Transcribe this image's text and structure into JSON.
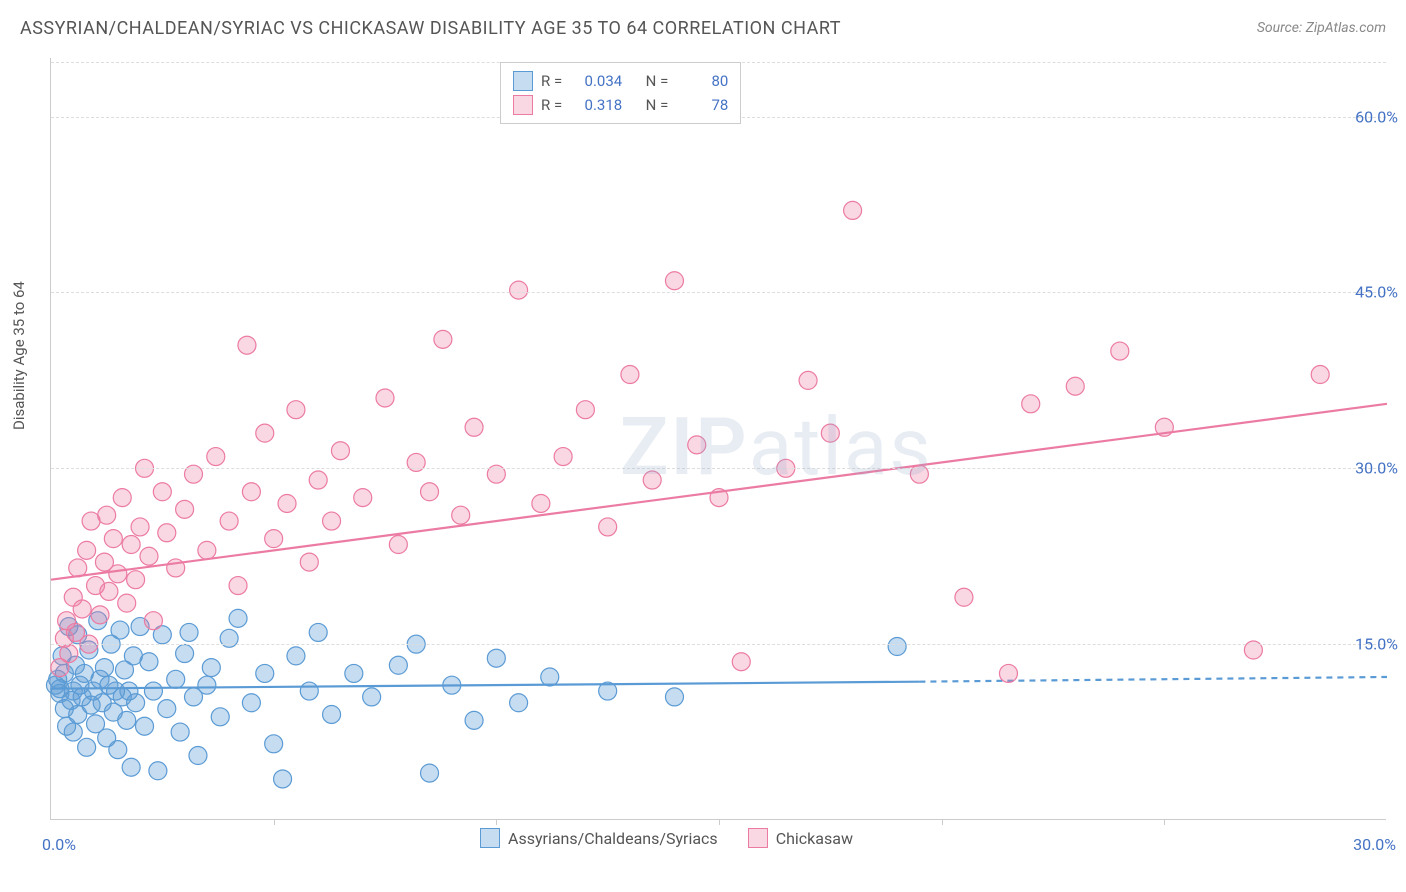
{
  "title": "ASSYRIAN/CHALDEAN/SYRIAC VS CHICKASAW DISABILITY AGE 35 TO 64 CORRELATION CHART",
  "source_label": "Source:",
  "source_value": "ZipAtlas.com",
  "watermark_zip": "ZIP",
  "watermark_atlas": "atlas",
  "ylabel": "Disability Age 35 to 64",
  "chart": {
    "type": "scatter",
    "background_color": "#ffffff",
    "grid_color": "#dddddd",
    "axis_color": "#cccccc",
    "xlim": [
      0,
      30
    ],
    "ylim": [
      0,
      65
    ],
    "x_ticks": [
      "0.0%",
      "30.0%"
    ],
    "x_minor_tick_step": 5,
    "y_ticks": [
      {
        "v": 15,
        "label": "15.0%"
      },
      {
        "v": 30,
        "label": "30.0%"
      },
      {
        "v": 45,
        "label": "45.0%"
      },
      {
        "v": 60,
        "label": "60.0%"
      }
    ],
    "tick_color": "#4472c4",
    "tick_fontsize": 16,
    "label_fontsize": 15,
    "title_fontsize": 18,
    "marker_radius": 9,
    "marker_opacity": 0.55,
    "line_width": 2.2,
    "series": [
      {
        "name": "Assyrians/Chaldeans/Syriacs",
        "color": "#5b9bd5",
        "fill": "rgba(91,155,213,0.35)",
        "stroke": "#5b9bd5",
        "R": "0.034",
        "N": "80",
        "trend": {
          "x1": 0,
          "y1": 11.2,
          "x2": 19.5,
          "y2": 11.8,
          "dash_x2": 30,
          "dash_y2": 12.2
        },
        "points": [
          [
            0.1,
            11.5
          ],
          [
            0.15,
            12
          ],
          [
            0.2,
            10.8
          ],
          [
            0.2,
            11.2
          ],
          [
            0.25,
            14
          ],
          [
            0.3,
            12.5
          ],
          [
            0.3,
            9.5
          ],
          [
            0.35,
            8
          ],
          [
            0.4,
            16.5
          ],
          [
            0.45,
            10.2
          ],
          [
            0.5,
            11
          ],
          [
            0.5,
            7.5
          ],
          [
            0.55,
            13.2
          ],
          [
            0.6,
            9
          ],
          [
            0.6,
            15.8
          ],
          [
            0.65,
            11.5
          ],
          [
            0.7,
            10.5
          ],
          [
            0.75,
            12.5
          ],
          [
            0.8,
            6.2
          ],
          [
            0.85,
            14.5
          ],
          [
            0.9,
            9.8
          ],
          [
            0.95,
            11
          ],
          [
            1.0,
            8.2
          ],
          [
            1.05,
            17
          ],
          [
            1.1,
            12
          ],
          [
            1.15,
            10
          ],
          [
            1.2,
            13
          ],
          [
            1.25,
            7
          ],
          [
            1.3,
            11.5
          ],
          [
            1.35,
            15
          ],
          [
            1.4,
            9.2
          ],
          [
            1.45,
            11
          ],
          [
            1.5,
            6
          ],
          [
            1.55,
            16.2
          ],
          [
            1.6,
            10.5
          ],
          [
            1.65,
            12.8
          ],
          [
            1.7,
            8.5
          ],
          [
            1.75,
            11
          ],
          [
            1.8,
            4.5
          ],
          [
            1.85,
            14
          ],
          [
            1.9,
            10
          ],
          [
            2.0,
            16.5
          ],
          [
            2.1,
            8
          ],
          [
            2.2,
            13.5
          ],
          [
            2.3,
            11
          ],
          [
            2.4,
            4.2
          ],
          [
            2.5,
            15.8
          ],
          [
            2.6,
            9.5
          ],
          [
            2.8,
            12
          ],
          [
            2.9,
            7.5
          ],
          [
            3.0,
            14.2
          ],
          [
            3.1,
            16
          ],
          [
            3.2,
            10.5
          ],
          [
            3.3,
            5.5
          ],
          [
            3.5,
            11.5
          ],
          [
            3.6,
            13
          ],
          [
            3.8,
            8.8
          ],
          [
            4.0,
            15.5
          ],
          [
            4.2,
            17.2
          ],
          [
            4.5,
            10
          ],
          [
            4.8,
            12.5
          ],
          [
            5.0,
            6.5
          ],
          [
            5.2,
            3.5
          ],
          [
            5.5,
            14
          ],
          [
            5.8,
            11
          ],
          [
            6.0,
            16
          ],
          [
            6.3,
            9
          ],
          [
            6.8,
            12.5
          ],
          [
            7.2,
            10.5
          ],
          [
            7.8,
            13.2
          ],
          [
            8.2,
            15
          ],
          [
            8.5,
            4
          ],
          [
            9.0,
            11.5
          ],
          [
            9.5,
            8.5
          ],
          [
            10.0,
            13.8
          ],
          [
            10.5,
            10
          ],
          [
            11.2,
            12.2
          ],
          [
            12.5,
            11
          ],
          [
            14.0,
            10.5
          ],
          [
            19.0,
            14.8
          ]
        ]
      },
      {
        "name": "Chickasaw",
        "color": "#ec7ba3",
        "fill": "rgba(236,123,163,0.30)",
        "stroke": "#ec7ba3",
        "R": "0.318",
        "N": "78",
        "trend": {
          "x1": 0,
          "y1": 20.5,
          "x2": 30,
          "y2": 35.5
        },
        "points": [
          [
            0.2,
            13
          ],
          [
            0.3,
            15.5
          ],
          [
            0.35,
            17
          ],
          [
            0.4,
            14.2
          ],
          [
            0.5,
            19
          ],
          [
            0.55,
            16
          ],
          [
            0.6,
            21.5
          ],
          [
            0.7,
            18
          ],
          [
            0.8,
            23
          ],
          [
            0.85,
            15
          ],
          [
            0.9,
            25.5
          ],
          [
            1.0,
            20
          ],
          [
            1.1,
            17.5
          ],
          [
            1.2,
            22
          ],
          [
            1.25,
            26
          ],
          [
            1.3,
            19.5
          ],
          [
            1.4,
            24
          ],
          [
            1.5,
            21
          ],
          [
            1.6,
            27.5
          ],
          [
            1.7,
            18.5
          ],
          [
            1.8,
            23.5
          ],
          [
            1.9,
            20.5
          ],
          [
            2.0,
            25
          ],
          [
            2.1,
            30
          ],
          [
            2.2,
            22.5
          ],
          [
            2.3,
            17
          ],
          [
            2.5,
            28
          ],
          [
            2.6,
            24.5
          ],
          [
            2.8,
            21.5
          ],
          [
            3.0,
            26.5
          ],
          [
            3.2,
            29.5
          ],
          [
            3.5,
            23
          ],
          [
            3.7,
            31
          ],
          [
            4.0,
            25.5
          ],
          [
            4.2,
            20
          ],
          [
            4.4,
            40.5
          ],
          [
            4.5,
            28
          ],
          [
            4.8,
            33
          ],
          [
            5.0,
            24
          ],
          [
            5.3,
            27
          ],
          [
            5.5,
            35
          ],
          [
            5.8,
            22
          ],
          [
            6.0,
            29
          ],
          [
            6.3,
            25.5
          ],
          [
            6.5,
            31.5
          ],
          [
            7.0,
            27.5
          ],
          [
            7.5,
            36
          ],
          [
            7.8,
            23.5
          ],
          [
            8.2,
            30.5
          ],
          [
            8.5,
            28
          ],
          [
            8.8,
            41
          ],
          [
            9.2,
            26
          ],
          [
            9.5,
            33.5
          ],
          [
            10.0,
            29.5
          ],
          [
            10.5,
            45.2
          ],
          [
            11.0,
            27
          ],
          [
            11.5,
            31
          ],
          [
            12.0,
            35
          ],
          [
            12.5,
            25
          ],
          [
            13.0,
            38
          ],
          [
            13.5,
            29
          ],
          [
            14.0,
            46
          ],
          [
            14.5,
            32
          ],
          [
            15.0,
            27.5
          ],
          [
            15.5,
            13.5
          ],
          [
            16.5,
            30
          ],
          [
            17.0,
            37.5
          ],
          [
            17.5,
            33
          ],
          [
            18.0,
            52
          ],
          [
            19.5,
            29.5
          ],
          [
            20.5,
            19
          ],
          [
            21.5,
            12.5
          ],
          [
            22.0,
            35.5
          ],
          [
            23.0,
            37
          ],
          [
            24.0,
            40
          ],
          [
            25.0,
            33.5
          ],
          [
            27.0,
            14.5
          ],
          [
            28.5,
            38
          ]
        ]
      }
    ]
  },
  "legend_top": {
    "r_label": "R =",
    "n_label": "N ="
  },
  "legend_bottom_labels": [
    "Assyrians/Chaldeans/Syriacs",
    "Chickasaw"
  ]
}
